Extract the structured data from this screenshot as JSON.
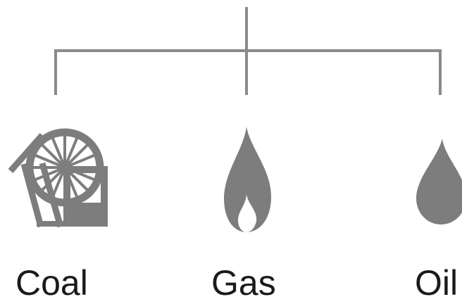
{
  "nodes": [
    {
      "label": "Coal",
      "icon": "mine-wheel-icon"
    },
    {
      "label": "Gas",
      "icon": "gas-flame-icon"
    },
    {
      "label": "Oil",
      "icon": "oil-drop-icon"
    }
  ],
  "colors": {
    "connector": "#8a8a8a",
    "icon": "#7d7d7d",
    "text": "#1a1a1a"
  }
}
